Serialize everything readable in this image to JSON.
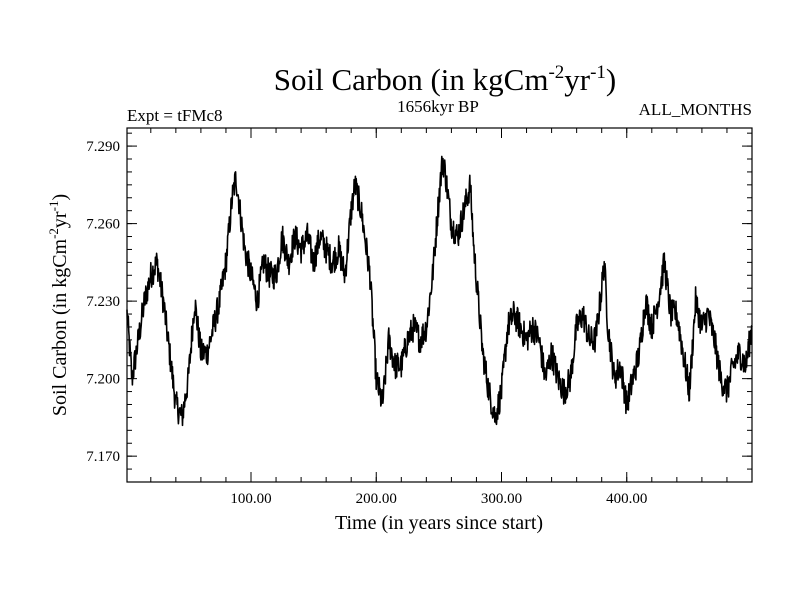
{
  "chart_data": {
    "type": "line",
    "title": "Soil Carbon (in kgCm",
    "title_sup1": "-2",
    "title_mid": "yr",
    "title_sup2": "-1",
    "title_end": ")",
    "left_label": "Expt = tFMc8",
    "center_label": "1656kyr BP",
    "right_label": "ALL_MONTHS",
    "xlabel": "Time (in years since start)",
    "ylabel": "Soil Carbon (in kgCm",
    "ylabel_sup1": "-2",
    "ylabel_mid": "yr",
    "ylabel_sup2": "-1",
    "ylabel_end": ")",
    "xlim": [
      1,
      500
    ],
    "ylim": [
      7.16,
      7.297
    ],
    "x_ticks": [
      100,
      200,
      300,
      400
    ],
    "x_tick_labels": [
      "100.00",
      "200.00",
      "300.00",
      "400.00"
    ],
    "y_ticks": [
      7.17,
      7.2,
      7.23,
      7.26,
      7.29
    ],
    "y_tick_labels": [
      "7.170",
      "7.200",
      "7.230",
      "7.260",
      "7.290"
    ],
    "grid": false,
    "series": [
      {
        "name": "Soil Carbon",
        "color": "#000000",
        "x": [
          1,
          5,
          10,
          15,
          20,
          25,
          30,
          35,
          40,
          45,
          50,
          55,
          60,
          65,
          70,
          75,
          80,
          85,
          88,
          95,
          100,
          105,
          110,
          115,
          120,
          125,
          130,
          135,
          140,
          145,
          150,
          155,
          160,
          165,
          170,
          175,
          180,
          183,
          188,
          195,
          200,
          205,
          210,
          215,
          220,
          225,
          230,
          235,
          240,
          245,
          250,
          253,
          255,
          260,
          265,
          270,
          275,
          278,
          285,
          290,
          295,
          300,
          305,
          310,
          315,
          320,
          325,
          330,
          335,
          340,
          345,
          350,
          355,
          360,
          365,
          370,
          375,
          380,
          382,
          385,
          390,
          395,
          400,
          405,
          410,
          415,
          420,
          425,
          430,
          435,
          440,
          445,
          450,
          455,
          460,
          465,
          470,
          475,
          480,
          485,
          490,
          495,
          500
        ],
        "values": [
          7.225,
          7.2,
          7.215,
          7.23,
          7.24,
          7.245,
          7.23,
          7.21,
          7.19,
          7.185,
          7.2,
          7.23,
          7.21,
          7.21,
          7.22,
          7.23,
          7.245,
          7.27,
          7.278,
          7.25,
          7.24,
          7.23,
          7.245,
          7.24,
          7.24,
          7.255,
          7.245,
          7.255,
          7.25,
          7.255,
          7.245,
          7.255,
          7.25,
          7.245,
          7.25,
          7.24,
          7.265,
          7.275,
          7.265,
          7.24,
          7.2,
          7.19,
          7.215,
          7.205,
          7.205,
          7.215,
          7.22,
          7.215,
          7.22,
          7.24,
          7.27,
          7.285,
          7.28,
          7.26,
          7.255,
          7.265,
          7.275,
          7.25,
          7.21,
          7.195,
          7.185,
          7.195,
          7.22,
          7.225,
          7.22,
          7.215,
          7.22,
          7.215,
          7.2,
          7.21,
          7.2,
          7.195,
          7.2,
          7.22,
          7.225,
          7.215,
          7.215,
          7.235,
          7.245,
          7.22,
          7.2,
          7.205,
          7.19,
          7.2,
          7.21,
          7.23,
          7.22,
          7.23,
          7.245,
          7.225,
          7.225,
          7.21,
          7.195,
          7.23,
          7.22,
          7.225,
          7.215,
          7.2,
          7.195,
          7.205,
          7.21,
          7.205,
          7.22
        ]
      }
    ]
  }
}
